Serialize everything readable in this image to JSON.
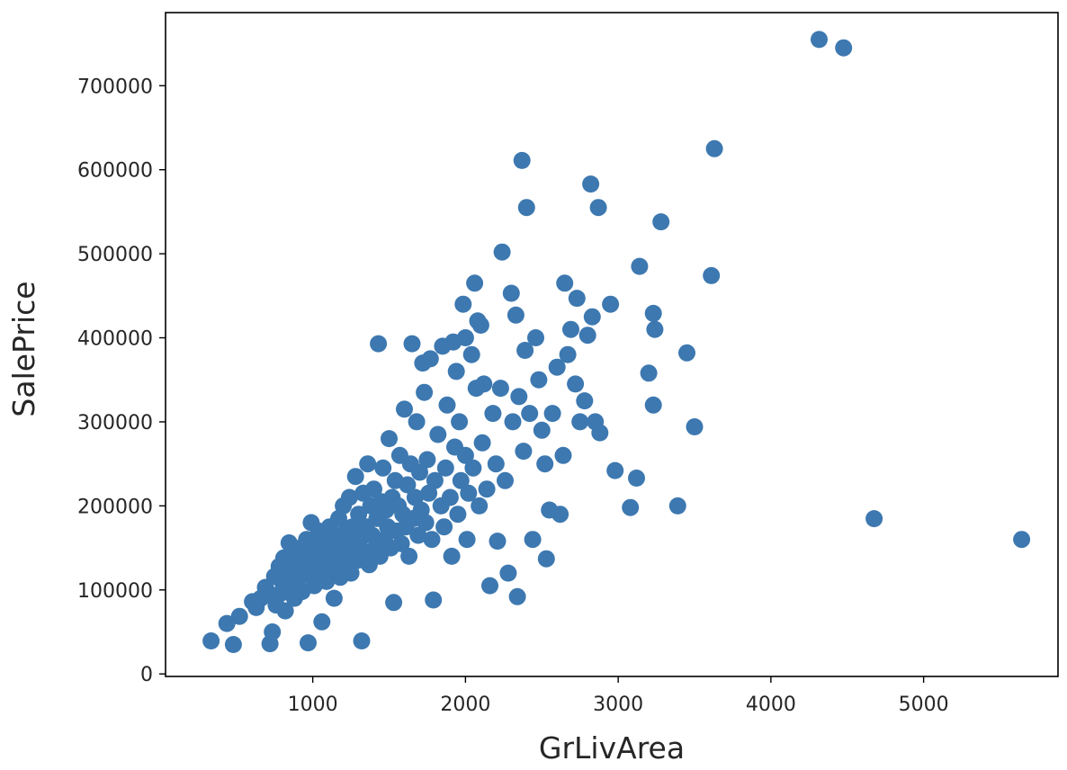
{
  "chart_data": {
    "type": "scatter",
    "title": "",
    "xlabel": "GrLivArea",
    "ylabel": "SalePrice",
    "xlim": [
      36,
      5880
    ],
    "ylim": [
      -3000,
      787000
    ],
    "xticks": [
      1000,
      2000,
      3000,
      4000,
      5000
    ],
    "xtick_labels": [
      "1000",
      "2000",
      "3000",
      "4000",
      "5000"
    ],
    "yticks": [
      0,
      100000,
      200000,
      300000,
      400000,
      500000,
      600000,
      700000
    ],
    "ytick_labels": [
      "0",
      "100000",
      "200000",
      "300000",
      "400000",
      "500000",
      "600000",
      "700000"
    ],
    "grid": false,
    "marker_color": "#3d78b0",
    "series": [
      {
        "points": [
          [
            334,
            39300
          ],
          [
            438,
            60000
          ],
          [
            480,
            35000
          ],
          [
            520,
            68500
          ],
          [
            605,
            86000
          ],
          [
            630,
            79000
          ],
          [
            660,
            90000
          ],
          [
            690,
            103000
          ],
          [
            720,
            95000
          ],
          [
            720,
            36000
          ],
          [
            735,
            50000
          ],
          [
            750,
            116000
          ],
          [
            760,
            82000
          ],
          [
            780,
            128000
          ],
          [
            790,
            96000
          ],
          [
            800,
            110000
          ],
          [
            810,
            138000
          ],
          [
            820,
            75000
          ],
          [
            830,
            122000
          ],
          [
            845,
            156000
          ],
          [
            860,
            100000
          ],
          [
            870,
            132000
          ],
          [
            880,
            90000
          ],
          [
            890,
            145000
          ],
          [
            900,
            110000
          ],
          [
            910,
            125000
          ],
          [
            920,
            150000
          ],
          [
            930,
            98000
          ],
          [
            940,
            135000
          ],
          [
            950,
            118000
          ],
          [
            960,
            160000
          ],
          [
            970,
            37000
          ],
          [
            980,
            128000
          ],
          [
            990,
            180000
          ],
          [
            1000,
            142000
          ],
          [
            1010,
            105000
          ],
          [
            1020,
            155000
          ],
          [
            1030,
            130000
          ],
          [
            1040,
            170000
          ],
          [
            1050,
            118000
          ],
          [
            1060,
            62000
          ],
          [
            1070,
            148000
          ],
          [
            1080,
            160000
          ],
          [
            1090,
            110000
          ],
          [
            1100,
            135000
          ],
          [
            1110,
            175000
          ],
          [
            1120,
            125000
          ],
          [
            1130,
            150000
          ],
          [
            1140,
            90000
          ],
          [
            1150,
            165000
          ],
          [
            1160,
            140000
          ],
          [
            1170,
            185000
          ],
          [
            1180,
            115000
          ],
          [
            1190,
            155000
          ],
          [
            1200,
            200000
          ],
          [
            1210,
            130000
          ],
          [
            1220,
            170000
          ],
          [
            1230,
            145000
          ],
          [
            1240,
            210000
          ],
          [
            1250,
            120000
          ],
          [
            1260,
            175000
          ],
          [
            1270,
            155000
          ],
          [
            1280,
            235000
          ],
          [
            1290,
            135000
          ],
          [
            1300,
            190000
          ],
          [
            1310,
            160000
          ],
          [
            1320,
            39300
          ],
          [
            1330,
            215000
          ],
          [
            1340,
            145000
          ],
          [
            1350,
            175000
          ],
          [
            1360,
            250000
          ],
          [
            1370,
            130000
          ],
          [
            1380,
            200000
          ],
          [
            1390,
            165000
          ],
          [
            1400,
            220000
          ],
          [
            1410,
            150000
          ],
          [
            1420,
            185000
          ],
          [
            1430,
            393000
          ],
          [
            1440,
            140000
          ],
          [
            1450,
            205000
          ],
          [
            1460,
            245000
          ],
          [
            1470,
            160000
          ],
          [
            1480,
            195000
          ],
          [
            1490,
            175000
          ],
          [
            1500,
            280000
          ],
          [
            1510,
            150000
          ],
          [
            1520,
            210000
          ],
          [
            1530,
            85000
          ],
          [
            1540,
            230000
          ],
          [
            1550,
            170000
          ],
          [
            1560,
            200000
          ],
          [
            1570,
            260000
          ],
          [
            1580,
            155000
          ],
          [
            1590,
            190000
          ],
          [
            1600,
            315000
          ],
          [
            1610,
            175000
          ],
          [
            1620,
            225000
          ],
          [
            1630,
            140000
          ],
          [
            1640,
            250000
          ],
          [
            1650,
            393000
          ],
          [
            1660,
            185000
          ],
          [
            1670,
            210000
          ],
          [
            1680,
            300000
          ],
          [
            1690,
            165000
          ],
          [
            1700,
            240000
          ],
          [
            1710,
            195000
          ],
          [
            1720,
            370000
          ],
          [
            1730,
            335000
          ],
          [
            1740,
            180000
          ],
          [
            1750,
            255000
          ],
          [
            1760,
            215000
          ],
          [
            1770,
            375000
          ],
          [
            1780,
            160000
          ],
          [
            1790,
            88000
          ],
          [
            1800,
            230000
          ],
          [
            1820,
            285000
          ],
          [
            1840,
            200000
          ],
          [
            1850,
            390000
          ],
          [
            1860,
            175000
          ],
          [
            1870,
            245000
          ],
          [
            1880,
            320000
          ],
          [
            1900,
            210000
          ],
          [
            1910,
            140000
          ],
          [
            1920,
            395000
          ],
          [
            1930,
            270000
          ],
          [
            1940,
            360000
          ],
          [
            1950,
            190000
          ],
          [
            1960,
            300000
          ],
          [
            1970,
            230000
          ],
          [
            1985,
            440000
          ],
          [
            2000,
            260000
          ],
          [
            2000,
            400000
          ],
          [
            2010,
            160000
          ],
          [
            2020,
            215000
          ],
          [
            2040,
            380000
          ],
          [
            2050,
            245000
          ],
          [
            2060,
            465000
          ],
          [
            2070,
            340000
          ],
          [
            2080,
            420000
          ],
          [
            2090,
            200000
          ],
          [
            2100,
            415000
          ],
          [
            2110,
            275000
          ],
          [
            2120,
            345000
          ],
          [
            2140,
            220000
          ],
          [
            2160,
            105000
          ],
          [
            2180,
            310000
          ],
          [
            2200,
            250000
          ],
          [
            2210,
            158000
          ],
          [
            2230,
            340000
          ],
          [
            2240,
            502000
          ],
          [
            2260,
            230000
          ],
          [
            2280,
            120000
          ],
          [
            2300,
            453000
          ],
          [
            2310,
            300000
          ],
          [
            2330,
            427000
          ],
          [
            2340,
            92000
          ],
          [
            2350,
            330000
          ],
          [
            2370,
            611000
          ],
          [
            2380,
            265000
          ],
          [
            2390,
            385000
          ],
          [
            2400,
            555000
          ],
          [
            2420,
            310000
          ],
          [
            2440,
            160000
          ],
          [
            2460,
            400000
          ],
          [
            2480,
            350000
          ],
          [
            2500,
            290000
          ],
          [
            2520,
            250000
          ],
          [
            2530,
            137000
          ],
          [
            2550,
            195000
          ],
          [
            2570,
            310000
          ],
          [
            2600,
            365000
          ],
          [
            2620,
            190000
          ],
          [
            2640,
            260000
          ],
          [
            2650,
            465000
          ],
          [
            2670,
            380000
          ],
          [
            2690,
            410000
          ],
          [
            2720,
            345000
          ],
          [
            2730,
            447000
          ],
          [
            2750,
            300000
          ],
          [
            2780,
            325000
          ],
          [
            2800,
            403000
          ],
          [
            2820,
            583000
          ],
          [
            2830,
            425000
          ],
          [
            2850,
            300000
          ],
          [
            2870,
            555000
          ],
          [
            2880,
            287000
          ],
          [
            2950,
            440000
          ],
          [
            2980,
            242000
          ],
          [
            3080,
            198000
          ],
          [
            3120,
            233000
          ],
          [
            3140,
            485000
          ],
          [
            3200,
            358000
          ],
          [
            3230,
            429000
          ],
          [
            3230,
            320000
          ],
          [
            3240,
            410000
          ],
          [
            3280,
            538000
          ],
          [
            3390,
            200000
          ],
          [
            3450,
            382000
          ],
          [
            3500,
            294000
          ],
          [
            3610,
            474000
          ],
          [
            3630,
            625000
          ],
          [
            4316,
            755000
          ],
          [
            4476,
            745000
          ],
          [
            4676,
            184750
          ],
          [
            5642,
            160000
          ]
        ]
      }
    ]
  }
}
